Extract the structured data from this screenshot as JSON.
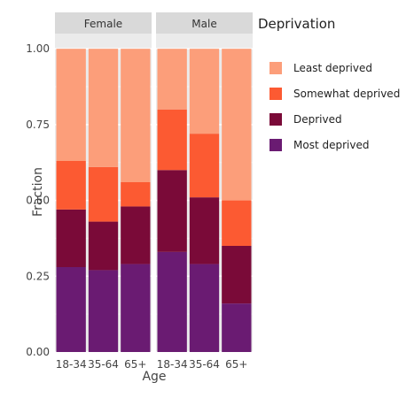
{
  "chart_data": {
    "type": "bar",
    "stacked": true,
    "facets": [
      "Female",
      "Male"
    ],
    "categories": [
      "18-34",
      "35-64",
      "65+"
    ],
    "xlabel": "Age",
    "ylabel": "Fraction",
    "ylim": [
      0,
      1.05
    ],
    "yticks": [
      "0.00",
      "0.25",
      "0.50",
      "0.75",
      "1.00"
    ],
    "grid": true,
    "legend": {
      "title": "Deprivation",
      "placement": "right",
      "order": [
        "Least deprived",
        "Somewhat deprived",
        "Deprived",
        "Most deprived"
      ]
    },
    "series": [
      {
        "name": "Most deprived",
        "color": "#6a1b72",
        "values": {
          "Female": [
            0.28,
            0.27,
            0.29
          ],
          "Male": [
            0.33,
            0.29,
            0.16
          ]
        }
      },
      {
        "name": "Deprived",
        "color": "#7a0a38",
        "values": {
          "Female": [
            0.19,
            0.16,
            0.19
          ],
          "Male": [
            0.27,
            0.22,
            0.19
          ]
        }
      },
      {
        "name": "Somewhat deprived",
        "color": "#fc5a32",
        "values": {
          "Female": [
            0.16,
            0.18,
            0.08
          ],
          "Male": [
            0.2,
            0.21,
            0.15
          ]
        }
      },
      {
        "name": "Least deprived",
        "color": "#fc9e7a",
        "values": {
          "Female": [
            0.37,
            0.39,
            0.44
          ],
          "Male": [
            0.2,
            0.28,
            0.5
          ]
        }
      }
    ]
  }
}
